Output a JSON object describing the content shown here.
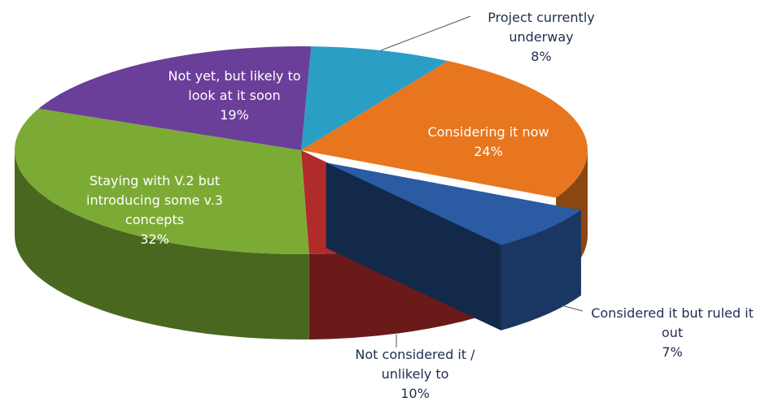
{
  "chart_data": {
    "type": "pie3d",
    "categories": [
      "Project currently underway",
      "Considering it now",
      "Considered it but ruled it out",
      "Not considered it / unlikely to",
      "Staying with V.2 but introducing some v.3 concepts",
      "Not yet, but likely to look at it soon"
    ],
    "values": [
      8,
      24,
      7,
      10,
      32,
      19
    ],
    "value_labels": [
      "8%",
      "24%",
      "7%",
      "10%",
      "32%",
      "19%"
    ],
    "colors": [
      "#2a9ec5",
      "#e8761e",
      "#2a5ba3",
      "#b22b2b",
      "#7cab35",
      "#6a3f99"
    ],
    "explode": [
      false,
      false,
      true,
      false,
      false,
      false
    ]
  }
}
